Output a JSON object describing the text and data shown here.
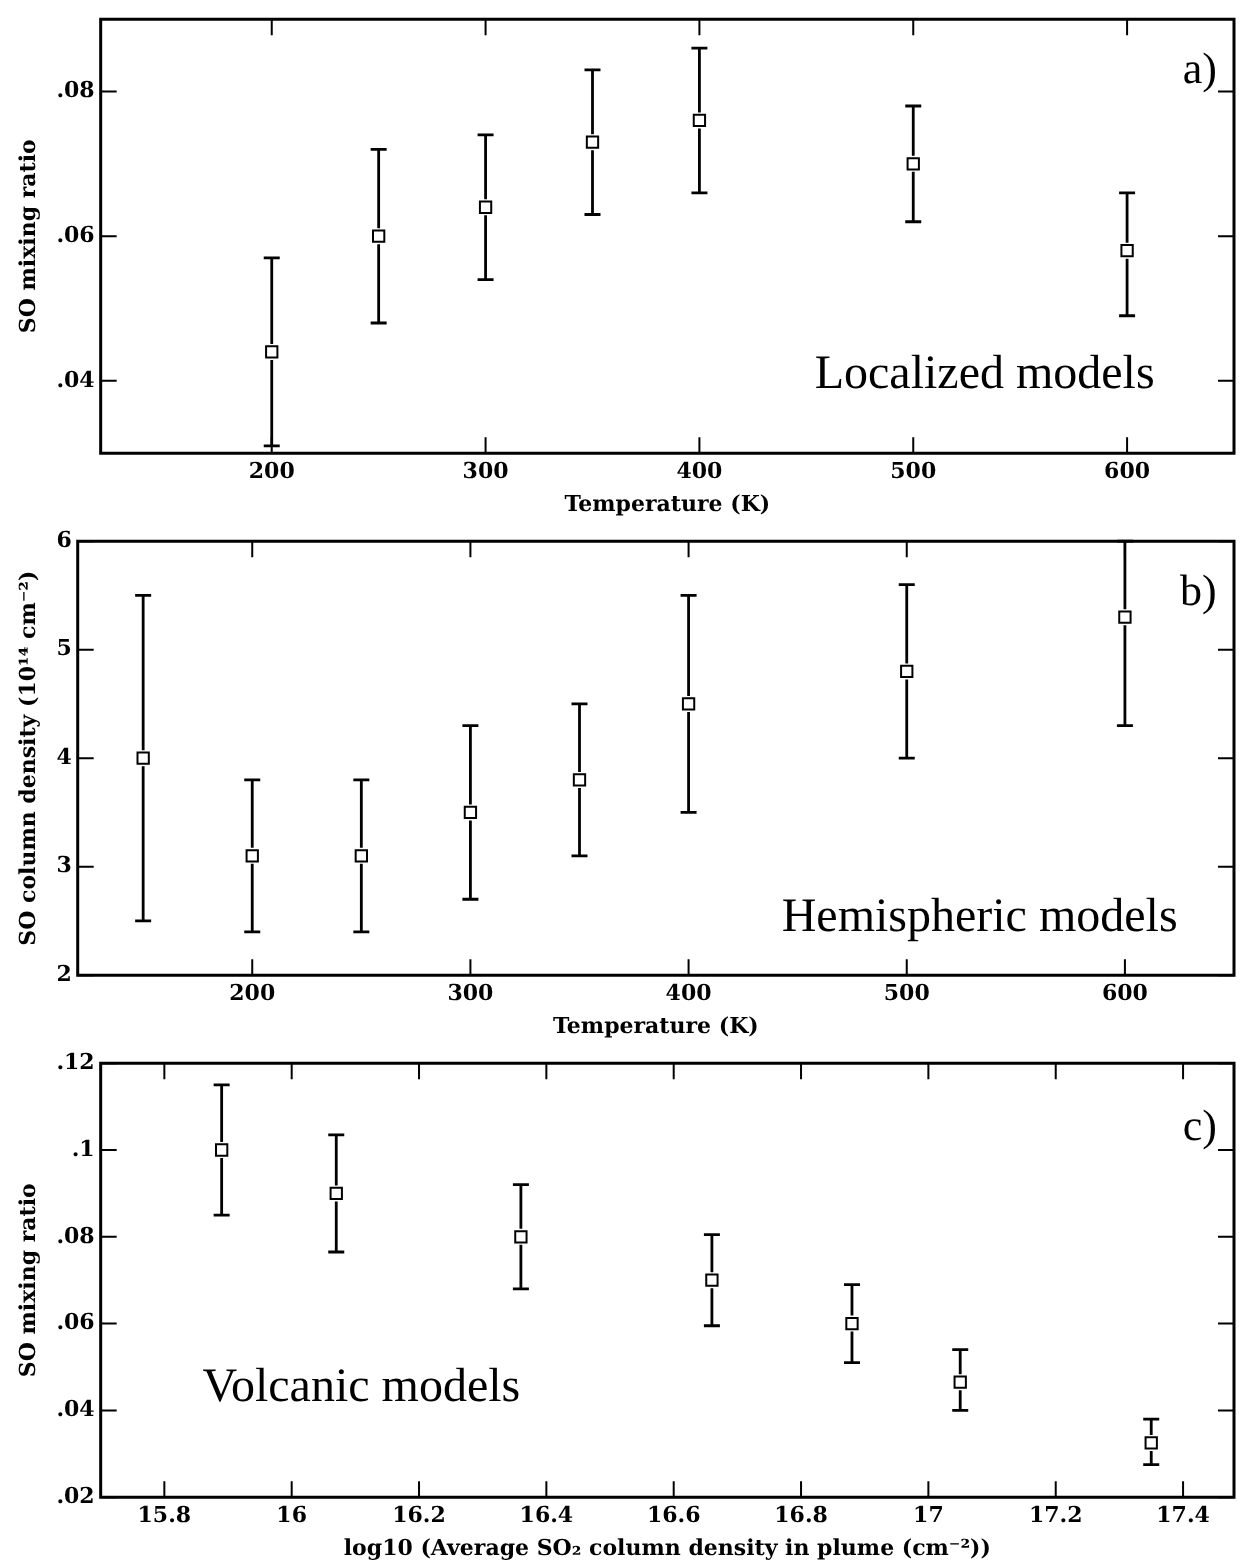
{
  "chart_data": [
    {
      "type": "scatter",
      "xlabel": "Temperature (K)",
      "ylabel": "SO mixing ratio",
      "annotations": [
        "a)",
        "Localized models"
      ],
      "series": [
        {
          "color": "#000000",
          "x": [
            200,
            250,
            300,
            350,
            400,
            500,
            600
          ],
          "values": [
            0.044,
            0.06,
            0.064,
            0.073,
            0.076,
            0.07,
            0.058
          ],
          "errors": [
            [
              0.031,
              0.057
            ],
            [
              0.048,
              0.072
            ],
            [
              0.054,
              0.074
            ],
            [
              0.063,
              0.083
            ],
            [
              0.066,
              0.086
            ],
            [
              0.062,
              0.078
            ],
            [
              0.049,
              0.066
            ]
          ]
        }
      ],
      "xlim": [
        120,
        650
      ],
      "xticks": [
        200,
        300,
        400,
        500,
        600
      ],
      "ylim": [
        0.03,
        0.09
      ],
      "yticks": [
        {
          "value": 0.04,
          "label": ".04"
        },
        {
          "value": 0.06,
          "label": ".06"
        },
        {
          "value": 0.08,
          "label": ".08"
        }
      ],
      "marker": "square",
      "grid": false,
      "legend": false
    },
    {
      "type": "scatter",
      "xlabel": "Temperature (K)",
      "ylabel": "SO column density (10¹⁴ cm⁻²)",
      "annotations": [
        "b)",
        "Hemispheric models"
      ],
      "series": [
        {
          "color": "#000000",
          "x": [
            150,
            200,
            250,
            300,
            350,
            400,
            500,
            600
          ],
          "values": [
            4.0,
            3.1,
            3.1,
            3.5,
            3.8,
            4.5,
            4.8,
            5.3
          ],
          "errors": [
            [
              2.5,
              5.5
            ],
            [
              2.4,
              3.8
            ],
            [
              2.4,
              3.8
            ],
            [
              2.7,
              4.3
            ],
            [
              3.1,
              4.5
            ],
            [
              3.5,
              5.5
            ],
            [
              4.0,
              5.6
            ],
            [
              4.3,
              6.0
            ]
          ]
        }
      ],
      "xlim": [
        120,
        650
      ],
      "xticks": [
        200,
        300,
        400,
        500,
        600
      ],
      "ylim": [
        2,
        6
      ],
      "yticks": [
        2,
        3,
        4,
        5,
        6
      ],
      "marker": "square",
      "grid": false,
      "legend": false
    },
    {
      "type": "scatter",
      "xlabel": "log10 (Average SO₂ column density in plume (cm⁻²))",
      "ylabel": "SO mixing ratio",
      "annotations": [
        "c)",
        "Volcanic models"
      ],
      "series": [
        {
          "color": "#000000",
          "x": [
            15.89,
            16.07,
            16.36,
            16.66,
            16.88,
            17.05,
            17.35
          ],
          "values": [
            0.1,
            0.09,
            0.08,
            0.07,
            0.06,
            0.0465,
            0.0325
          ],
          "errors": [
            [
              0.085,
              0.115
            ],
            [
              0.0765,
              0.1035
            ],
            [
              0.068,
              0.092
            ],
            [
              0.0595,
              0.0805
            ],
            [
              0.051,
              0.069
            ],
            [
              0.04,
              0.054
            ],
            [
              0.0275,
              0.038
            ]
          ]
        }
      ],
      "xlim": [
        15.7,
        17.48
      ],
      "xticks": [
        15.8,
        16,
        16.2,
        16.4,
        16.6,
        16.8,
        17,
        17.2,
        17.4
      ],
      "ylim": [
        0.02,
        0.12
      ],
      "yticks": [
        {
          "value": 0.02,
          "label": ".02"
        },
        {
          "value": 0.04,
          "label": ".04"
        },
        {
          "value": 0.06,
          "label": ".06"
        },
        {
          "value": 0.08,
          "label": ".08"
        },
        {
          "value": 0.1,
          "label": ".1"
        },
        {
          "value": 0.12,
          "label": ".12"
        }
      ],
      "marker": "square",
      "grid": false,
      "legend": false
    }
  ]
}
